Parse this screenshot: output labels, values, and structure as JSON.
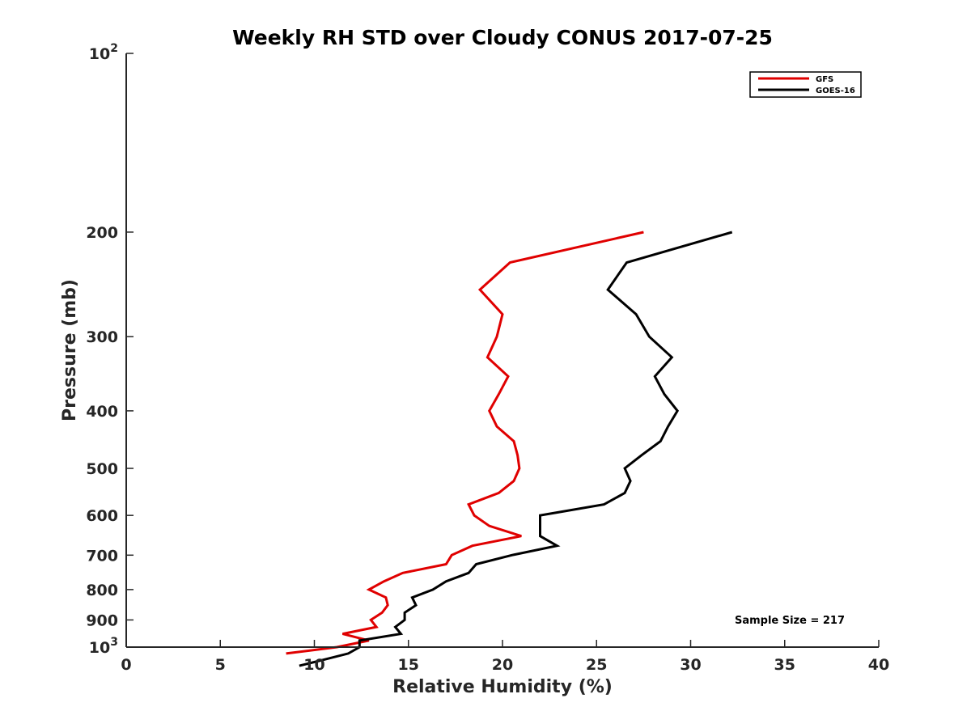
{
  "chart_data": {
    "type": "line",
    "title": "Weekly RH STD over Cloudy CONUS 2017-07-25",
    "xlabel": "Relative Humidity (%)",
    "ylabel": "Pressure (mb)",
    "xlim": [
      0,
      40
    ],
    "ylim": [
      1000,
      100
    ],
    "y_scale": "log",
    "y_reversed": true,
    "grid": false,
    "legend_position": "top-right",
    "x_ticks": [
      "0",
      "5",
      "10",
      "15",
      "20",
      "25",
      "30",
      "35",
      "40"
    ],
    "y_ticks": [
      {
        "value": 100,
        "base": "10",
        "exp": "2"
      },
      {
        "value": 200,
        "label": "200"
      },
      {
        "value": 300,
        "label": "300"
      },
      {
        "value": 400,
        "label": "400"
      },
      {
        "value": 500,
        "label": "500"
      },
      {
        "value": 600,
        "label": "600"
      },
      {
        "value": 700,
        "label": "700"
      },
      {
        "value": 800,
        "label": "800"
      },
      {
        "value": 900,
        "label": "900"
      },
      {
        "value": 1000,
        "base": "10",
        "exp": "3"
      }
    ],
    "annotation": "Sample Size = 217",
    "series": [
      {
        "name": "GFS",
        "color": "#e00000",
        "points": [
          [
            27.5,
            200
          ],
          [
            20.4,
            225
          ],
          [
            18.8,
            250
          ],
          [
            20.0,
            275
          ],
          [
            19.7,
            300
          ],
          [
            19.2,
            325
          ],
          [
            20.3,
            350
          ],
          [
            19.8,
            375
          ],
          [
            19.3,
            400
          ],
          [
            19.7,
            425
          ],
          [
            20.6,
            450
          ],
          [
            20.8,
            475
          ],
          [
            20.9,
            500
          ],
          [
            20.6,
            525
          ],
          [
            19.8,
            550
          ],
          [
            18.2,
            575
          ],
          [
            18.5,
            600
          ],
          [
            19.3,
            625
          ],
          [
            21.0,
            650
          ],
          [
            18.4,
            675
          ],
          [
            17.3,
            700
          ],
          [
            17.0,
            725
          ],
          [
            14.7,
            750
          ],
          [
            13.7,
            775
          ],
          [
            12.9,
            800
          ],
          [
            13.8,
            825
          ],
          [
            13.9,
            850
          ],
          [
            13.6,
            875
          ],
          [
            13.0,
            900
          ],
          [
            13.3,
            925
          ],
          [
            11.5,
            950
          ],
          [
            12.9,
            975
          ],
          [
            11.2,
            1000
          ],
          [
            8.5,
            1025
          ]
        ]
      },
      {
        "name": "GOES-16",
        "color": "#000000",
        "points": [
          [
            32.2,
            200
          ],
          [
            26.6,
            225
          ],
          [
            25.6,
            250
          ],
          [
            27.1,
            275
          ],
          [
            27.8,
            300
          ],
          [
            29.0,
            325
          ],
          [
            28.1,
            350
          ],
          [
            28.6,
            375
          ],
          [
            29.3,
            400
          ],
          [
            28.8,
            425
          ],
          [
            28.4,
            450
          ],
          [
            27.4,
            475
          ],
          [
            26.5,
            500
          ],
          [
            26.8,
            525
          ],
          [
            26.5,
            550
          ],
          [
            25.4,
            575
          ],
          [
            22.0,
            600
          ],
          [
            22.0,
            625
          ],
          [
            22.0,
            650
          ],
          [
            22.9,
            675
          ],
          [
            20.5,
            700
          ],
          [
            18.6,
            725
          ],
          [
            18.2,
            750
          ],
          [
            17.0,
            775
          ],
          [
            16.3,
            800
          ],
          [
            15.2,
            825
          ],
          [
            15.4,
            850
          ],
          [
            14.8,
            875
          ],
          [
            14.8,
            900
          ],
          [
            14.3,
            925
          ],
          [
            14.6,
            950
          ],
          [
            12.4,
            975
          ],
          [
            12.4,
            1000
          ],
          [
            11.8,
            1025
          ],
          [
            10.5,
            1050
          ],
          [
            9.2,
            1075
          ]
        ]
      }
    ]
  }
}
